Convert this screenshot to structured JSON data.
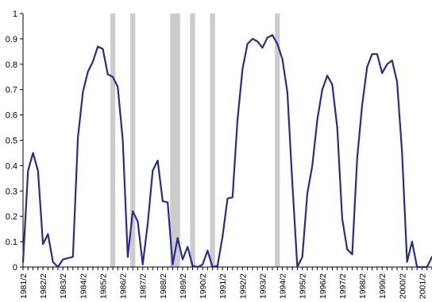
{
  "chart_data": {
    "type": "line",
    "title": "",
    "xlabel": "",
    "ylabel": "",
    "ylim": [
      0,
      1
    ],
    "y_ticks": [
      "0",
      "0.1",
      "0.2",
      "0.3",
      "0.4",
      "0.5",
      "0.6",
      "0.7",
      "0.8",
      "0.9",
      "1"
    ],
    "x_range": [
      "1981/2",
      "2001/4"
    ],
    "x_tick_labels": [
      "1981/2",
      "1982/2",
      "1983/2",
      "1984/2",
      "1985/2",
      "1986/2",
      "1987/2",
      "1988/2",
      "1989/2",
      "1990/2",
      "1991/2",
      "1992/2",
      "1993/2",
      "1994/2",
      "1995/2",
      "1996/2",
      "1997/2",
      "1998/2",
      "1999/2",
      "2000/2",
      "2001/2"
    ],
    "grid": false,
    "legend": "none",
    "line_color": "#2b2b8f",
    "shade_color": "#cccccc",
    "shaded_periods": [
      [
        "1985/4",
        "1985/4"
      ],
      [
        "1986/4",
        "1986/4"
      ],
      [
        "1988/4",
        "1989/1"
      ],
      [
        "1989/4",
        "1989/4"
      ],
      [
        "1990/4",
        "1990/4"
      ],
      [
        "1994/1",
        "1994/1"
      ]
    ],
    "series": [
      {
        "x": [
          "1981/2",
          "1981/3",
          "1981/4",
          "1982/1",
          "1982/2",
          "1982/3",
          "1982/4",
          "1983/1",
          "1983/2",
          "1983/3",
          "1983/4",
          "1984/1",
          "1984/2",
          "1984/3",
          "1984/4",
          "1985/1",
          "1985/2",
          "1985/3",
          "1985/4",
          "1986/1",
          "1986/2",
          "1986/3",
          "1986/4",
          "1987/1",
          "1987/2",
          "1987/3",
          "1987/4",
          "1988/1",
          "1988/2",
          "1988/3",
          "1988/4",
          "1989/1",
          "1989/2",
          "1989/3",
          "1989/4",
          "1990/1",
          "1990/2",
          "1990/3",
          "1990/4",
          "1991/1",
          "1991/2",
          "1991/3",
          "1991/4",
          "1992/1",
          "1992/2",
          "1992/3",
          "1992/4",
          "1993/1",
          "1993/2",
          "1993/3",
          "1993/4",
          "1994/1",
          "1994/2",
          "1994/3",
          "1994/4",
          "1995/1",
          "1995/2",
          "1995/3",
          "1995/4",
          "1996/1",
          "1996/2",
          "1996/3",
          "1996/4",
          "1997/1",
          "1997/2",
          "1997/3",
          "1997/4",
          "1998/1",
          "1998/2",
          "1998/3",
          "1998/4",
          "1999/1",
          "1999/2",
          "1999/3",
          "1999/4",
          "2000/1",
          "2000/2",
          "2000/3",
          "2000/4",
          "2001/1",
          "2001/2",
          "2001/3",
          "2001/4"
        ],
        "values": [
          0.02,
          0.38,
          0.45,
          0.38,
          0.09,
          0.13,
          0.02,
          0.0,
          0.03,
          0.035,
          0.04,
          0.51,
          0.69,
          0.77,
          0.81,
          0.87,
          0.86,
          0.76,
          0.75,
          0.71,
          0.5,
          0.04,
          0.22,
          0.18,
          0.01,
          0.17,
          0.38,
          0.42,
          0.26,
          0.255,
          0.01,
          0.115,
          0.03,
          0.08,
          0.005,
          0.0,
          0.01,
          0.065,
          0.0,
          0.005,
          0.12,
          0.27,
          0.275,
          0.58,
          0.78,
          0.88,
          0.9,
          0.89,
          0.865,
          0.905,
          0.915,
          0.88,
          0.82,
          0.69,
          0.33,
          0.0,
          0.04,
          0.29,
          0.4,
          0.58,
          0.7,
          0.755,
          0.72,
          0.55,
          0.19,
          0.07,
          0.05,
          0.43,
          0.64,
          0.79,
          0.84,
          0.84,
          0.765,
          0.8,
          0.815,
          0.73,
          0.45,
          0.02,
          0.1,
          0.0,
          0.0,
          0.0,
          0.04
        ]
      }
    ]
  }
}
